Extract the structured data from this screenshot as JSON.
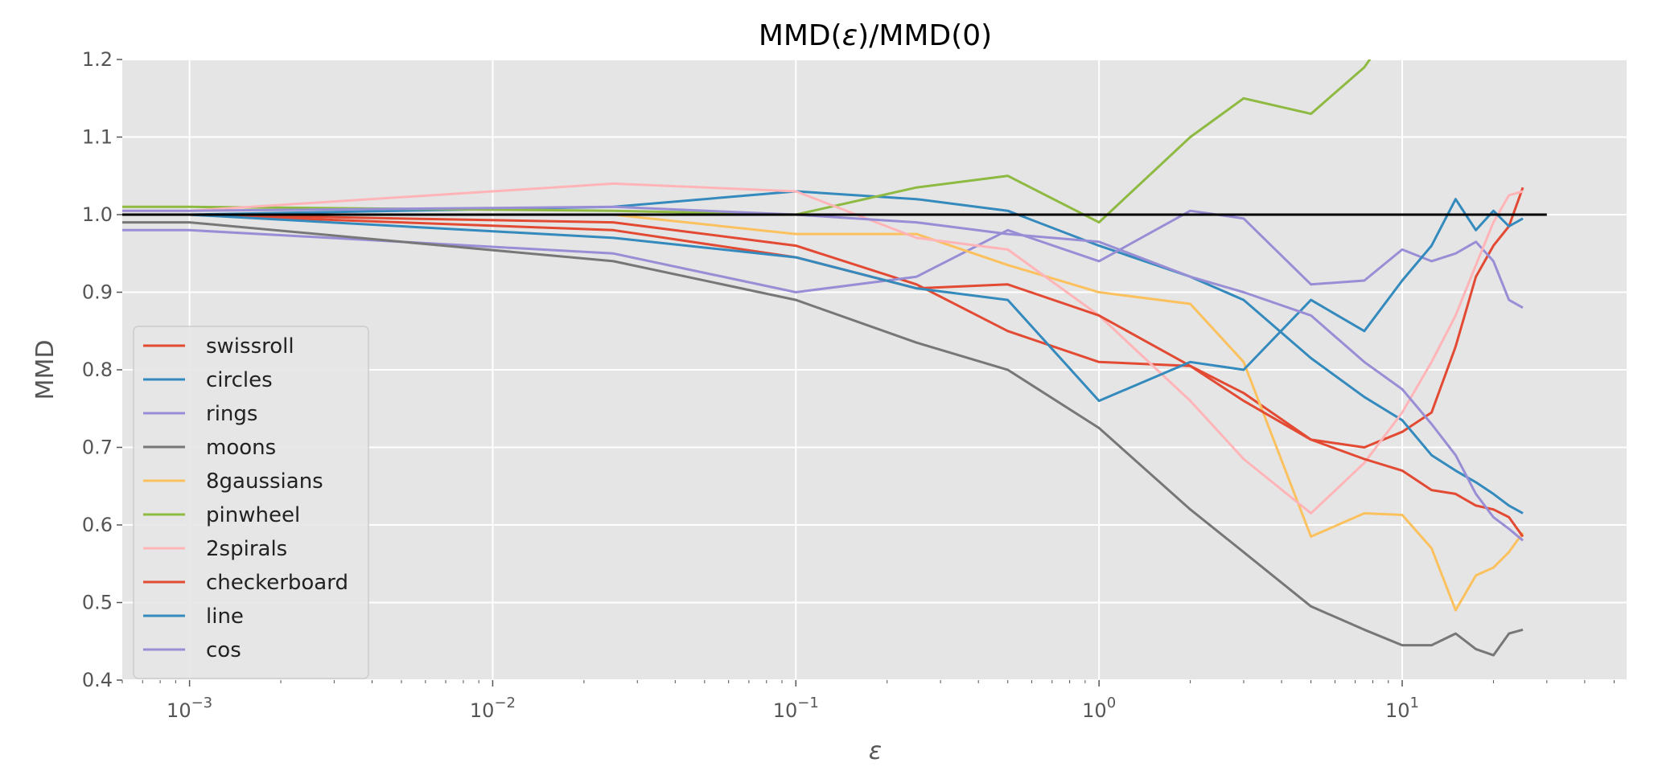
{
  "chart_data": {
    "type": "line",
    "title_parts": [
      "MMD(",
      "ε",
      ")/MMD(0)"
    ],
    "xlabel": "ε",
    "ylabel": "MMD",
    "x_scale": "log",
    "xlim": [
      0.0006,
      55
    ],
    "ylim": [
      0.4,
      1.2
    ],
    "grid": true,
    "legend_position": "lower-left",
    "y_ticks": [
      "0.4",
      "0.5",
      "0.6",
      "0.7",
      "0.8",
      "0.9",
      "1.0",
      "1.1",
      "1.2"
    ],
    "x_ticks": [
      {
        "base": "10",
        "exp": "−3",
        "value": 0.001
      },
      {
        "base": "10",
        "exp": "−2",
        "value": 0.01
      },
      {
        "base": "10",
        "exp": "−1",
        "value": 0.1
      },
      {
        "base": "10",
        "exp": "0",
        "value": 1
      },
      {
        "base": "10",
        "exp": "1",
        "value": 10
      }
    ],
    "reference_line": {
      "y": 1.0,
      "x_range": [
        0.0006,
        30
      ],
      "color": "#000000"
    },
    "x": [
      0.0006,
      0.001,
      0.025,
      0.1,
      0.25,
      0.5,
      1,
      2,
      3,
      5,
      7.5,
      10,
      12.5,
      15,
      17.5,
      20,
      22.5,
      25
    ],
    "series": [
      {
        "name": "swissroll",
        "color": "#E24A33",
        "values": [
          1.0,
          1.0,
          0.99,
          0.96,
          0.91,
          0.85,
          0.81,
          0.805,
          0.77,
          0.71,
          0.7,
          0.72,
          0.745,
          0.83,
          0.92,
          0.96,
          0.985,
          1.035
        ]
      },
      {
        "name": "circles",
        "color": "#348ABD",
        "values": [
          1.0,
          1.0,
          1.01,
          1.03,
          1.02,
          1.005,
          0.96,
          0.92,
          0.89,
          0.815,
          0.765,
          0.735,
          0.69,
          0.67,
          0.655,
          0.64,
          0.625,
          0.615
        ]
      },
      {
        "name": "rings",
        "color": "#988ED5",
        "values": [
          0.98,
          0.98,
          0.95,
          0.9,
          0.92,
          0.98,
          0.94,
          1.005,
          0.995,
          0.91,
          0.915,
          0.955,
          0.94,
          0.95,
          0.965,
          0.94,
          0.89,
          0.88
        ]
      },
      {
        "name": "moons",
        "color": "#777777",
        "values": [
          0.99,
          0.99,
          0.94,
          0.89,
          0.835,
          0.8,
          0.725,
          0.62,
          0.565,
          0.495,
          0.465,
          0.445,
          0.445,
          0.46,
          0.44,
          0.432,
          0.46,
          0.465
        ]
      },
      {
        "name": "8gaussians",
        "color": "#FBC15E",
        "values": [
          1.0,
          1.0,
          1.0,
          0.975,
          0.975,
          0.935,
          0.9,
          0.885,
          0.81,
          0.585,
          0.615,
          0.613,
          0.57,
          0.49,
          0.535,
          0.545,
          0.565,
          0.59
        ]
      },
      {
        "name": "pinwheel",
        "color": "#8EBA42",
        "values": [
          1.01,
          1.01,
          1.005,
          1.0,
          1.035,
          1.05,
          0.99,
          1.1,
          1.15,
          1.13,
          1.19,
          1.26,
          null,
          null,
          null,
          null,
          null,
          null
        ]
      },
      {
        "name": "2spirals",
        "color": "#FFB5B8",
        "values": [
          1.005,
          1.005,
          1.04,
          1.03,
          0.97,
          0.955,
          0.87,
          0.76,
          0.685,
          0.615,
          0.68,
          0.745,
          0.81,
          0.87,
          0.935,
          0.99,
          1.025,
          1.03
        ]
      },
      {
        "name": "checkerboard",
        "color": "#E24A33",
        "values": [
          1.0,
          1.0,
          0.98,
          0.945,
          0.905,
          0.91,
          0.87,
          0.805,
          0.76,
          0.71,
          0.685,
          0.67,
          0.645,
          0.64,
          0.625,
          0.62,
          0.61,
          0.585
        ]
      },
      {
        "name": "line",
        "color": "#348ABD",
        "values": [
          1.0,
          1.0,
          0.97,
          0.945,
          0.905,
          0.89,
          0.76,
          0.81,
          0.8,
          0.89,
          0.85,
          0.915,
          0.96,
          1.02,
          0.98,
          1.005,
          0.985,
          0.995
        ]
      },
      {
        "name": "cos",
        "color": "#988ED5",
        "values": [
          1.005,
          1.005,
          1.01,
          1.0,
          0.99,
          0.975,
          0.965,
          0.92,
          0.9,
          0.87,
          0.81,
          0.775,
          0.73,
          0.69,
          0.64,
          0.61,
          0.595,
          0.58
        ]
      }
    ]
  }
}
